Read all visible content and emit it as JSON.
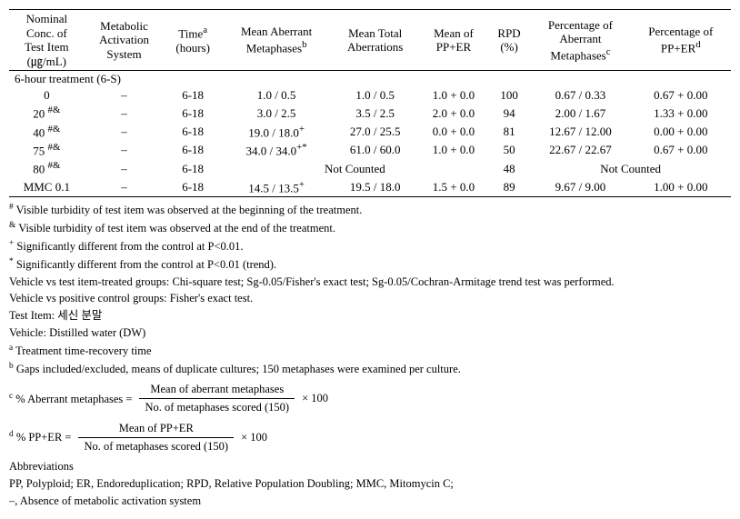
{
  "headers": {
    "c0": "Nominal\nConc. of\nTest Item\n(㎍/mL)",
    "c1": "Metabolic\nActivation\nSystem",
    "c2_html": "Time<sup>a</sup><br>(hours)",
    "c3_html": "Mean Aberrant<br>Metaphases<sup>b</sup>",
    "c4": "Mean Total\nAberrations",
    "c5": "Mean of\nPP+ER",
    "c6": "RPD\n(%)",
    "c7_html": "Percentage of<br>Aberrant<br>Metaphases<sup>c</sup>",
    "c8_html": "Percentage of<br>PP+ER<sup>d</sup>"
  },
  "section": "6-hour treatment (6-S)",
  "rows": [
    {
      "conc_html": "0",
      "mas": "–",
      "time": "6-18",
      "mam": "1.0 / 0.5",
      "mta": "1.0 / 0.5",
      "pper": "1.0 + 0.0",
      "rpd": "100",
      "pam": "0.67 / 0.33",
      "ppper": "0.67 + 0.00",
      "nc": false
    },
    {
      "conc_html": "20 <sup>#&amp;</sup>",
      "mas": "–",
      "time": "6-18",
      "mam": "3.0 / 2.5",
      "mta": "3.5 / 2.5",
      "pper": "2.0 + 0.0",
      "rpd": "94",
      "pam": "2.00 / 1.67",
      "ppper": "1.33 + 0.00",
      "nc": false
    },
    {
      "conc_html": "40 <sup>#&amp;</sup>",
      "mas": "–",
      "time": "6-18",
      "mam": "19.0 / 18.0<sup>+</sup>",
      "mta": "27.0 / 25.5",
      "pper": "0.0 + 0.0",
      "rpd": "81",
      "pam": "12.67 / 12.00",
      "ppper": "0.00 + 0.00",
      "nc": false
    },
    {
      "conc_html": "75 <sup>#&amp;</sup>",
      "mas": "–",
      "time": "6-18",
      "mam": "34.0 / 34.0<sup>+*</sup>",
      "mta": "61.0 / 60.0",
      "pper": "1.0 + 0.0",
      "rpd": "50",
      "pam": "22.67 / 22.67",
      "ppper": "0.67 + 0.00",
      "nc": false
    },
    {
      "conc_html": "80 <sup>#&amp;</sup>",
      "mas": "–",
      "time": "6-18",
      "mam": "",
      "mta": "",
      "pper": "",
      "rpd": "48",
      "pam": "",
      "ppper": "",
      "nc": true,
      "nc_text": "Not Counted"
    },
    {
      "conc_html": "MMC 0.1",
      "mas": "–",
      "time": "6-18",
      "mam": "14.5 / 13.5<sup>+</sup>",
      "mta": "19.5 / 18.0",
      "pper": "1.5 + 0.0",
      "rpd": "89",
      "pam": "9.67 / 9.00",
      "ppper": "1.00 + 0.00",
      "nc": false
    }
  ],
  "foot": {
    "f_hash": "# Visible turbidity of test item was observed at the beginning of the treatment.",
    "f_amp": "& Visible turbidity of test item was observed at the end of the treatment.",
    "f_plus": "+ Significantly different from the control at P<0.01.",
    "f_star": "* Significantly different from the control at P<0.01 (trend).",
    "vs_item": "Vehicle vs test item-treated groups: Chi-square test; Sg-0.05/Fisher's exact test; Sg-0.05/Cochran-Armitage trend test was performed.",
    "vs_pos": "Vehicle vs positive control groups: Fisher's exact test.",
    "test_item": "Test Item: 세신 분말",
    "vehicle": "Vehicle: Distilled water (DW)",
    "fa": "a Treatment time-recovery time",
    "fb": "b Gaps included/excluded, means of duplicate cultures; 150 metaphases were examined per culture.",
    "formula_c_lhs": "c % Aberrant metaphases =",
    "formula_c_num": "Mean    of aberrant metaphases",
    "formula_c_den": "No. of metaphases scored (150)",
    "formula_d_lhs": "d % PP+ER =",
    "formula_d_num": "Mean    of PP+ER",
    "formula_d_den": "No. of metaphases scored (150)",
    "times100": "×   100",
    "abbrev_head": "Abbreviations",
    "abbrev_body": "PP, Polyploid; ER, Endoreduplication; RPD, Relative Population Doubling; MMC, Mitomycin C;",
    "abbrev_dash": "–, Absence of metabolic activation system"
  }
}
